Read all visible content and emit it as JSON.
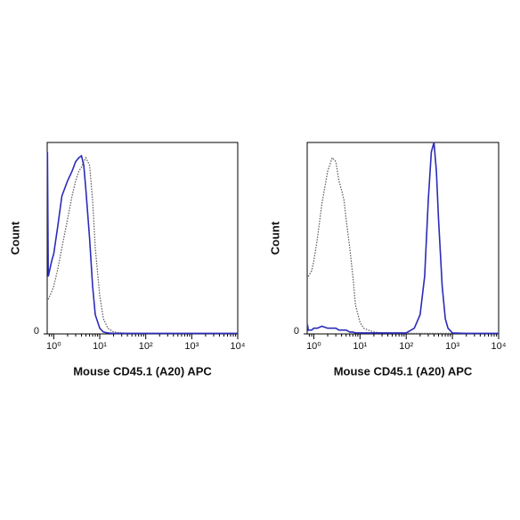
{
  "chart_data": [
    {
      "type": "line",
      "xlabel": "Mouse CD45.1 (A20) APC",
      "ylabel": "Count",
      "xscale": "log",
      "xlim": [
        0.72,
        10000
      ],
      "xticks": [
        {
          "value": 1,
          "label": "10⁰"
        },
        {
          "value": 10,
          "label": "10¹"
        },
        {
          "value": 100,
          "label": "10²"
        },
        {
          "value": 1000,
          "label": "10³"
        },
        {
          "value": 10000,
          "label": "10⁴"
        }
      ],
      "ylim": [
        0,
        100
      ],
      "yticks": [
        0
      ],
      "x": [
        0.73,
        0.76,
        0.9,
        1,
        1.2,
        1.5,
        2,
        2.5,
        3,
        3.5,
        4,
        4.5,
        5,
        6,
        7,
        8,
        10,
        12,
        15,
        20,
        30,
        50,
        100,
        150,
        200,
        250,
        300,
        350,
        400,
        450,
        500,
        600,
        700,
        800,
        1000,
        2000,
        5000,
        10000
      ],
      "series": [
        {
          "color": "#555555",
          "line_style": "dotted",
          "values": [
            null,
            18,
            22,
            25,
            33,
            45,
            60,
            72,
            80,
            85,
            87,
            90,
            92,
            88,
            70,
            45,
            20,
            8,
            3,
            1,
            0.5,
            0.3,
            0.3,
            0.3,
            0.3,
            0.3,
            0.3,
            0.3,
            0.3,
            0.3,
            0.3,
            0.3,
            0.3,
            0.3,
            0.3,
            0.3,
            0.3,
            0.3
          ]
        },
        {
          "color": "#2b2bb8",
          "line_style": "solid",
          "values": [
            95,
            30,
            38,
            42,
            55,
            72,
            80,
            85,
            90,
            92,
            93,
            88,
            75,
            50,
            25,
            10,
            3,
            1,
            0.5,
            0.3,
            0.3,
            0.3,
            0.3,
            0.3,
            0.3,
            0.3,
            0.3,
            0.3,
            0.3,
            0.3,
            0.3,
            0.3,
            0.3,
            0.3,
            0.3,
            0.3,
            0.3,
            0.3
          ]
        }
      ]
    },
    {
      "type": "line",
      "xlabel": "Mouse CD45.1 (A20) APC",
      "ylabel": "Count",
      "xscale": "log",
      "xlim": [
        0.72,
        10000
      ],
      "xticks": [
        {
          "value": 1,
          "label": "10⁰"
        },
        {
          "value": 10,
          "label": "10¹"
        },
        {
          "value": 100,
          "label": "10²"
        },
        {
          "value": 1000,
          "label": "10³"
        },
        {
          "value": 10000,
          "label": "10⁴"
        }
      ],
      "ylim": [
        0,
        100
      ],
      "yticks": [
        0
      ],
      "x": [
        0.73,
        0.76,
        0.9,
        1,
        1.2,
        1.5,
        2,
        2.5,
        3,
        3.5,
        4,
        4.5,
        5,
        6,
        7,
        8,
        10,
        12,
        15,
        20,
        30,
        50,
        100,
        150,
        200,
        250,
        300,
        350,
        400,
        450,
        500,
        600,
        700,
        800,
        1000,
        2000,
        5000,
        10000
      ],
      "series": [
        {
          "color": "#555555",
          "line_style": "dotted",
          "values": [
            null,
            30,
            33,
            38,
            50,
            68,
            85,
            92,
            90,
            80,
            75,
            70,
            60,
            45,
            30,
            15,
            6,
            3,
            2,
            1,
            0.5,
            0.3,
            0.3,
            0.3,
            0.3,
            0.3,
            0.3,
            0.3,
            0.3,
            0.3,
            0.3,
            0.3,
            0.3,
            0.3,
            0.3,
            0.3,
            0.3,
            0.3
          ]
        },
        {
          "color": "#2b2bb8",
          "line_style": "solid",
          "values": [
            5,
            2,
            2,
            3,
            3,
            4,
            3,
            3,
            3,
            2,
            2,
            2,
            2,
            1,
            1,
            0.5,
            0.5,
            0.5,
            0.5,
            0.5,
            0.5,
            0.5,
            0.5,
            3,
            10,
            30,
            70,
            95,
            100,
            85,
            60,
            25,
            8,
            3,
            0.5,
            0.3,
            0.3,
            0.3
          ]
        }
      ]
    }
  ]
}
